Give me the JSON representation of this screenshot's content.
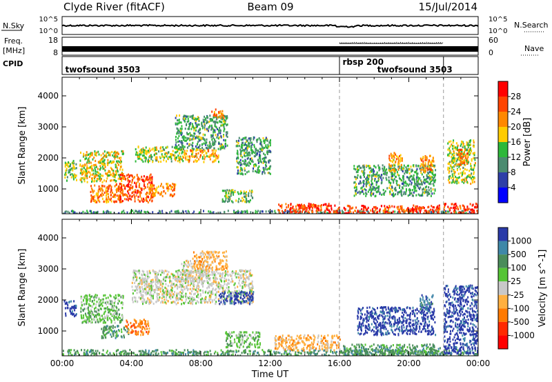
{
  "header": {
    "station": "Clyde River (fitACF)",
    "beam": "Beam 09",
    "date": "15/Jul/2014"
  },
  "nsky_panel": {
    "label": "N.Sky",
    "left_ticks": [
      "10^5",
      "10^0"
    ],
    "right_ticks": [
      "10^5",
      "10^0"
    ],
    "right_label": "N.Search"
  },
  "freq_panel": {
    "label_line1": "Freq.",
    "label_line2": "[MHz]",
    "left_ticks": [
      "18",
      "8"
    ],
    "right_ticks": [
      "60",
      "0"
    ],
    "right_label": "Nave"
  },
  "cpid_panel": {
    "label": "CPID",
    "segments": [
      {
        "name": "twofsound 3503",
        "start_hour": 0,
        "end_hour": 16
      },
      {
        "name": "rbsp 200",
        "start_hour": 16,
        "end_hour": 22
      },
      {
        "name": "twofsound 3503",
        "start_hour": 22,
        "end_hour": 24
      }
    ],
    "labels": [
      {
        "text": "twofsound 3503",
        "hour": 0.1,
        "row": 1
      },
      {
        "text": "rbsp 200",
        "hour": 16.1,
        "row": 0
      },
      {
        "text": "twofsound 3503",
        "hour": 18.1,
        "row": 1
      }
    ]
  },
  "colors": {
    "power": [
      "#0000ff",
      "#2e3fa8",
      "#4b8b70",
      "#2db83a",
      "#ffcc00",
      "#ff8800",
      "#ff4400",
      "#ff0000"
    ],
    "velocity": [
      "#2a3aa8",
      "#3f88a8",
      "#4a8c5a",
      "#55c435",
      "#c8c8c8",
      "#ffb040",
      "#ff7a00",
      "#ff2a00",
      "#ff0000"
    ],
    "ground_scatter": "#c8c8c8"
  },
  "chart_data": [
    {
      "type": "heatmap",
      "name": "power",
      "xlabel": "",
      "ylabel": "Slant Range [km]",
      "xlim": [
        0,
        24
      ],
      "ylim": [
        200,
        4600
      ],
      "yticks": [
        1000,
        2000,
        3000,
        4000
      ],
      "xticks": [
        0,
        4,
        8,
        12,
        16,
        20,
        24
      ],
      "mode_change_hours": [
        16,
        22
      ],
      "colorbar": {
        "label": "Power [dB]",
        "ticks": [
          4,
          8,
          12,
          16,
          20,
          24,
          28
        ],
        "range": [
          0,
          32
        ]
      },
      "regions": [
        {
          "t0": 0.0,
          "t1": 24.0,
          "r0": 230,
          "r1": 330,
          "v": 10
        },
        {
          "t0": 0.1,
          "t1": 0.8,
          "r0": 1300,
          "r1": 1950,
          "v": 14
        },
        {
          "t0": 1.0,
          "t1": 3.5,
          "r0": 1250,
          "r1": 2250,
          "v": 18
        },
        {
          "t0": 1.6,
          "t1": 3.4,
          "r0": 600,
          "r1": 1200,
          "v": 22
        },
        {
          "t0": 3.2,
          "t1": 5.2,
          "r0": 600,
          "r1": 1500,
          "v": 26
        },
        {
          "t0": 4.2,
          "t1": 7.0,
          "r0": 1900,
          "r1": 2400,
          "v": 16
        },
        {
          "t0": 5.0,
          "t1": 6.5,
          "r0": 800,
          "r1": 1200,
          "v": 22
        },
        {
          "t0": 6.5,
          "t1": 9.5,
          "r0": 2300,
          "r1": 3400,
          "v": 12
        },
        {
          "t0": 7.0,
          "t1": 9.0,
          "r0": 1900,
          "r1": 2300,
          "v": 20
        },
        {
          "t0": 8.6,
          "t1": 9.3,
          "r0": 3300,
          "r1": 3600,
          "v": 22
        },
        {
          "t0": 9.2,
          "t1": 11.0,
          "r0": 600,
          "r1": 1000,
          "v": 14
        },
        {
          "t0": 10.0,
          "t1": 12.0,
          "r0": 1500,
          "r1": 2700,
          "v": 12
        },
        {
          "t0": 12.4,
          "t1": 16.0,
          "r0": 230,
          "r1": 560,
          "v": 26
        },
        {
          "t0": 16.2,
          "t1": 21.8,
          "r0": 230,
          "r1": 500,
          "v": 27
        },
        {
          "t0": 16.8,
          "t1": 21.5,
          "r0": 800,
          "r1": 1800,
          "v": 12
        },
        {
          "t0": 18.8,
          "t1": 19.6,
          "r0": 1600,
          "r1": 2200,
          "v": 20
        },
        {
          "t0": 20.6,
          "t1": 21.4,
          "r0": 1500,
          "r1": 2100,
          "v": 22
        },
        {
          "t0": 22.0,
          "t1": 24.0,
          "r0": 230,
          "r1": 560,
          "v": 28
        },
        {
          "t0": 22.2,
          "t1": 23.8,
          "r0": 1200,
          "r1": 2600,
          "v": 16
        },
        {
          "t0": 22.8,
          "t1": 23.4,
          "r0": 1800,
          "r1": 2300,
          "v": 24
        }
      ]
    },
    {
      "type": "heatmap",
      "name": "velocity",
      "xlabel": "Time UT",
      "ylabel": "Slant Range [km]",
      "xlim": [
        0,
        24
      ],
      "ylim": [
        200,
        4600
      ],
      "yticks": [
        1000,
        2000,
        3000,
        4000
      ],
      "xticks": [
        0,
        4,
        8,
        12,
        16,
        20,
        24
      ],
      "xticklabels": [
        "00:00",
        "04:00",
        "08:00",
        "12:00",
        "16:00",
        "20:00",
        "00:00"
      ],
      "mode_change_hours": [
        16,
        22
      ],
      "colorbar": {
        "label": "Velocity [m s^-1]",
        "ticks": [
          "1000",
          "500",
          "100",
          "25",
          "-25",
          "-100",
          "-500",
          "-1000"
        ]
      },
      "regions": [
        {
          "t0": 0.0,
          "t1": 24.0,
          "r0": 230,
          "r1": 420,
          "c": 2
        },
        {
          "t0": 0.1,
          "t1": 0.8,
          "r0": 1500,
          "r1": 2000,
          "c": 0
        },
        {
          "t0": 1.0,
          "t1": 3.5,
          "r0": 1300,
          "r1": 2200,
          "c": 3
        },
        {
          "t0": 2.2,
          "t1": 3.8,
          "r0": 800,
          "r1": 1200,
          "c": 2
        },
        {
          "t0": 3.6,
          "t1": 5.0,
          "r0": 900,
          "r1": 1400,
          "c": 6
        },
        {
          "t0": 4.0,
          "t1": 11.0,
          "r0": 1900,
          "r1": 3000,
          "c": 4
        },
        {
          "t0": 6.8,
          "t1": 8.4,
          "r0": 2600,
          "r1": 3300,
          "c": 4
        },
        {
          "t0": 7.5,
          "t1": 9.5,
          "r0": 3000,
          "r1": 3600,
          "c": 5
        },
        {
          "t0": 9.0,
          "t1": 11.0,
          "r0": 1900,
          "r1": 2300,
          "c": 0
        },
        {
          "t0": 9.4,
          "t1": 11.4,
          "r0": 500,
          "r1": 1000,
          "c": 3
        },
        {
          "t0": 12.2,
          "t1": 16.0,
          "r0": 400,
          "r1": 900,
          "c": 5
        },
        {
          "t0": 16.2,
          "t1": 21.8,
          "r0": 230,
          "r1": 600,
          "c": 2
        },
        {
          "t0": 17.0,
          "t1": 21.5,
          "r0": 900,
          "r1": 1800,
          "c": 0
        },
        {
          "t0": 20.6,
          "t1": 21.4,
          "r0": 1700,
          "r1": 2200,
          "c": 1
        },
        {
          "t0": 22.0,
          "t1": 24.0,
          "r0": 300,
          "r1": 2500,
          "c": 0
        }
      ]
    }
  ]
}
